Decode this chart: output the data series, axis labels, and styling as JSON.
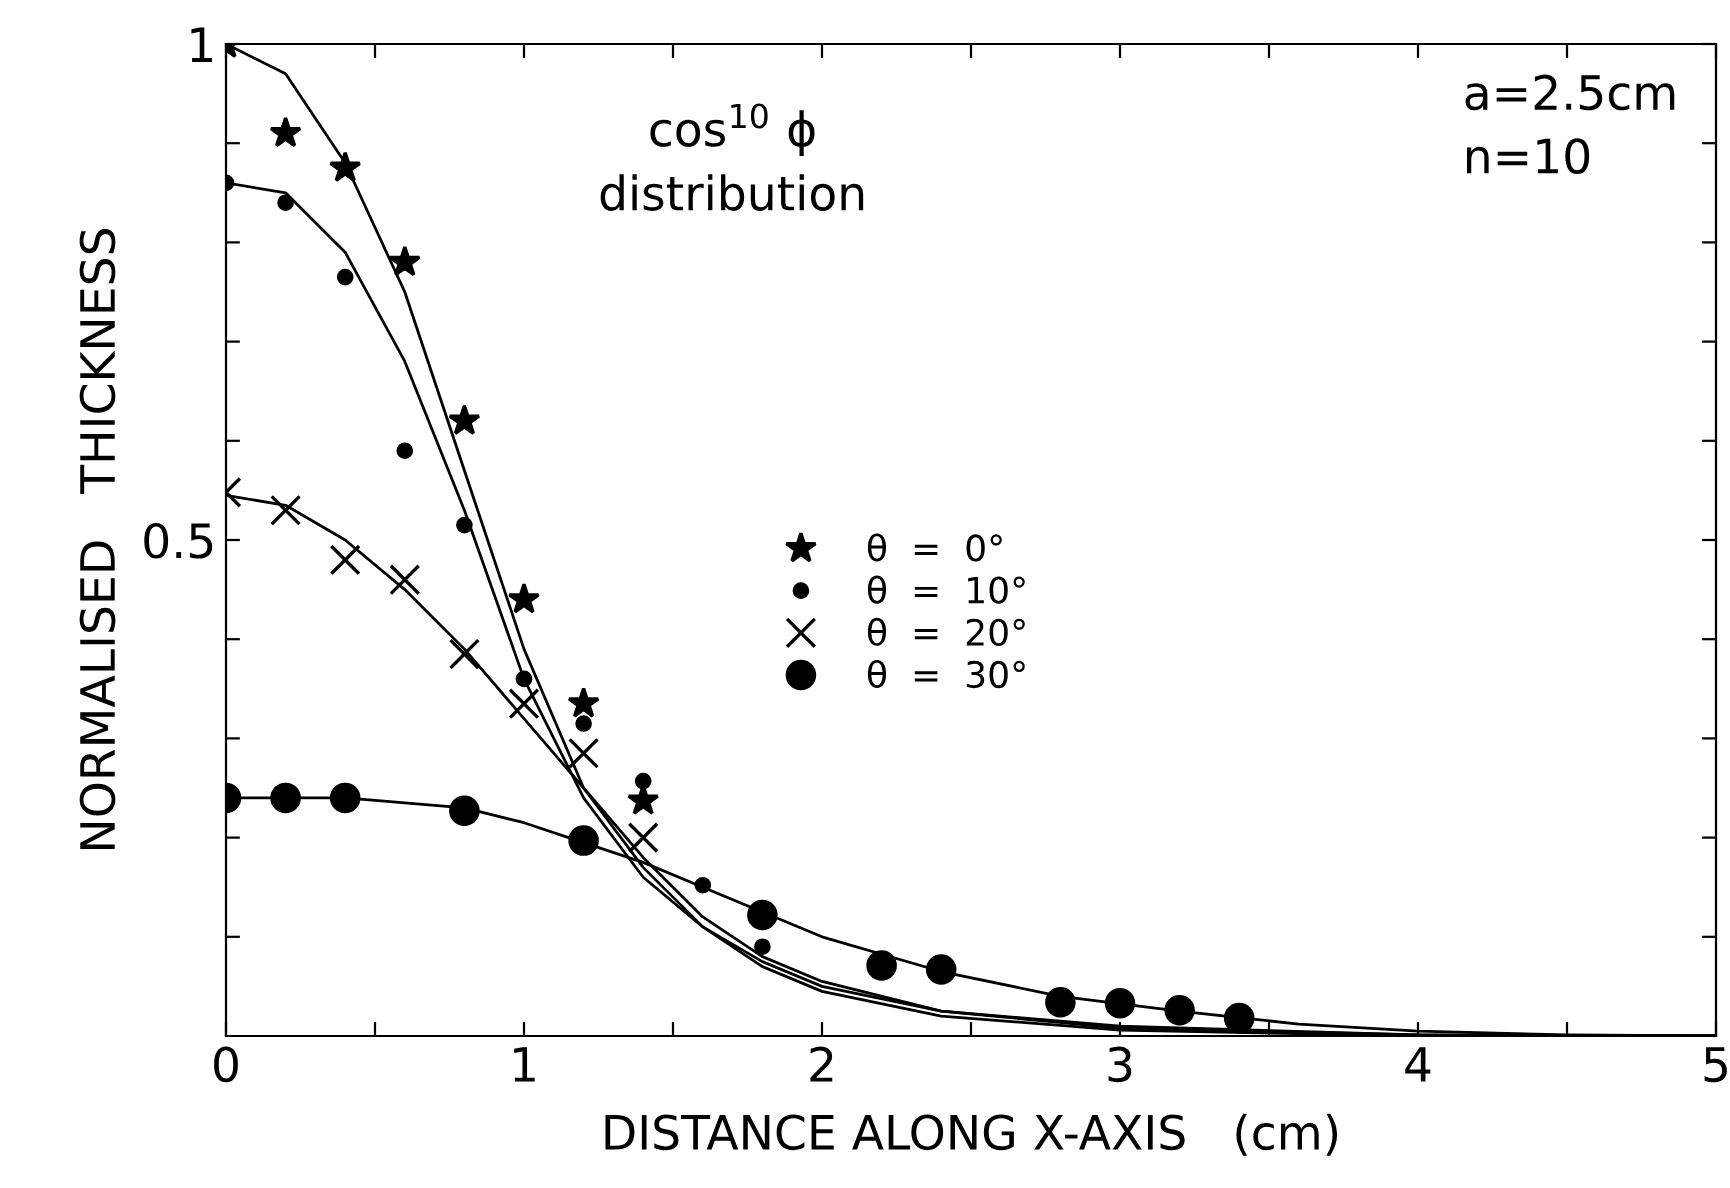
{
  "chart_data": {
    "type": "scatter",
    "xlabel": "DISTANCE ALONG X-AXIS   (cm)",
    "ylabel": "NORMALISED   THICKNESS",
    "xlim": [
      0,
      5
    ],
    "ylim": [
      0,
      1
    ],
    "xticks": [
      0,
      {
        "value": 0.5,
        "label": null
      },
      1,
      {
        "value": 1.5,
        "label": null
      },
      2,
      {
        "value": 2.5,
        "label": null
      },
      3,
      {
        "value": 3.5,
        "label": null
      },
      4,
      {
        "value": 4.5,
        "label": null
      },
      5
    ],
    "yticks": [
      {
        "value": 0.1,
        "label": null
      },
      {
        "value": 0.2,
        "label": null
      },
      {
        "value": 0.3,
        "label": null
      },
      {
        "value": 0.4,
        "label": null
      },
      0.5,
      {
        "value": 0.6,
        "label": null
      },
      {
        "value": 0.7,
        "label": null
      },
      {
        "value": 0.8,
        "label": null
      },
      {
        "value": 0.9,
        "label": null
      },
      1
    ],
    "grid": false,
    "legend": "center",
    "annotations": [
      "cos$^{10}$ ϕ\ndistribution",
      "a=2.5cm\nn=10"
    ],
    "series": [
      {
        "name": "θ  =  0°",
        "marker": "star",
        "color": "#000000",
        "x": [
          0,
          0.2,
          0.4,
          0.6,
          0.8,
          1.0,
          1.2,
          1.4
        ],
        "values": [
          1.0,
          0.91,
          0.875,
          0.78,
          0.62,
          0.44,
          0.335,
          0.237
        ]
      },
      {
        "name": "θ  =  10°",
        "marker": "circle",
        "color": "#000000",
        "x": [
          0,
          0.2,
          0.4,
          0.6,
          0.8,
          1.0,
          1.2,
          1.4,
          1.6,
          1.8
        ],
        "values": [
          0.86,
          0.84,
          0.765,
          0.59,
          0.515,
          0.36,
          0.315,
          0.257,
          0.152,
          0.09
        ]
      },
      {
        "name": "θ  =  20°",
        "marker": "cross",
        "color": "#000000",
        "x": [
          0,
          0.2,
          0.4,
          0.6,
          0.8,
          1.0,
          1.2,
          1.4
        ],
        "values": [
          0.548,
          0.53,
          0.48,
          0.46,
          0.385,
          0.335,
          0.285,
          0.2
        ]
      },
      {
        "name": "θ  =  30°",
        "marker": "circle",
        "color": "#000000",
        "x": [
          0,
          0.2,
          0.4,
          0.8,
          1.2,
          1.8,
          2.2,
          2.4,
          2.8,
          3.0,
          3.2,
          3.4
        ],
        "values": [
          0.24,
          0.24,
          0.24,
          0.227,
          0.197,
          0.122,
          0.071,
          0.067,
          0.034,
          0.033,
          0.026,
          0.018
        ]
      },
      {
        "type": "line",
        "line_style": "solid",
        "color": "#000000",
        "x": [
          0,
          0.2,
          0.4,
          0.6,
          0.8,
          1.0,
          1.2,
          1.4,
          1.6,
          1.8,
          2.0,
          2.4,
          3.0,
          4.0,
          5.0
        ],
        "values": [
          1.0,
          0.97,
          0.88,
          0.75,
          0.57,
          0.39,
          0.25,
          0.17,
          0.11,
          0.07,
          0.045,
          0.02,
          0.006,
          0.0,
          0.0
        ]
      },
      {
        "type": "line",
        "line_style": "solid",
        "color": "#000000",
        "x": [
          0,
          0.2,
          0.4,
          0.6,
          0.8,
          1.0,
          1.2,
          1.4,
          1.6,
          1.8,
          2.0,
          2.4,
          3.0,
          4.0,
          5.0
        ],
        "values": [
          0.86,
          0.85,
          0.79,
          0.68,
          0.53,
          0.36,
          0.24,
          0.16,
          0.11,
          0.075,
          0.05,
          0.025,
          0.01,
          0.001,
          0.0
        ]
      },
      {
        "type": "line",
        "line_style": "solid",
        "color": "#000000",
        "x": [
          0,
          0.2,
          0.4,
          0.6,
          0.8,
          1.0,
          1.2,
          1.4,
          1.6,
          1.8,
          2.0,
          2.4,
          3.0,
          4.0,
          5.0
        ],
        "values": [
          0.545,
          0.535,
          0.5,
          0.45,
          0.39,
          0.32,
          0.25,
          0.18,
          0.12,
          0.08,
          0.055,
          0.025,
          0.008,
          0.001,
          0.0
        ]
      },
      {
        "type": "line",
        "line_style": "solid",
        "color": "#000000",
        "x": [
          0,
          0.4,
          0.8,
          1.0,
          1.2,
          1.4,
          1.6,
          1.8,
          2.0,
          2.4,
          2.8,
          3.2,
          3.6,
          4.0,
          4.5,
          5.0
        ],
        "values": [
          0.24,
          0.24,
          0.23,
          0.215,
          0.195,
          0.175,
          0.15,
          0.125,
          0.1,
          0.065,
          0.04,
          0.025,
          0.012,
          0.005,
          0.001,
          0.0
        ]
      }
    ]
  }
}
